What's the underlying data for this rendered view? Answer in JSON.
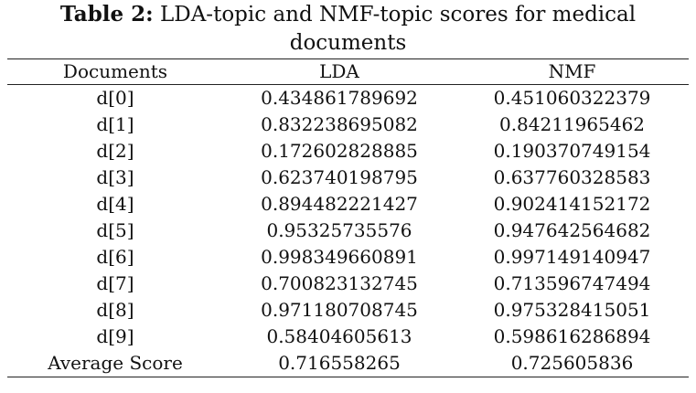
{
  "caption": {
    "label": "Table 2:",
    "text": " LDA-topic and NMF-topic scores for medical documents"
  },
  "table": {
    "headers": [
      "Documents",
      "LDA",
      "NMF"
    ],
    "rows": [
      [
        "d[0]",
        "0.434861789692",
        "0.451060322379"
      ],
      [
        "d[1]",
        "0.832238695082",
        "0.84211965462"
      ],
      [
        "d[2]",
        "0.172602828885",
        "0.190370749154"
      ],
      [
        "d[3]",
        "0.623740198795",
        "0.637760328583"
      ],
      [
        "d[4]",
        "0.894482221427",
        "0.902414152172"
      ],
      [
        "d[5]",
        "0.95325735576",
        "0.947642564682"
      ],
      [
        "d[6]",
        "0.998349660891",
        "0.997149140947"
      ],
      [
        "d[7]",
        "0.700823132745",
        "0.713596747494"
      ],
      [
        "d[8]",
        "0.971180708745",
        "0.975328415051"
      ],
      [
        "d[9]",
        "0.58404605613",
        "0.598616286894"
      ],
      [
        "Average Score",
        "0.716558265",
        "0.725605836"
      ]
    ]
  }
}
